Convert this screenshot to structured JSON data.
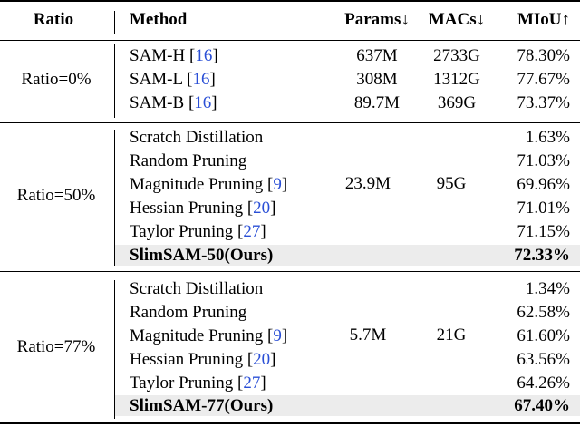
{
  "header": {
    "ratio": "Ratio",
    "method": "Method",
    "params": "Params↓",
    "macs": "MACs↓",
    "miou": "MIoU↑"
  },
  "groups": [
    {
      "ratio": "Ratio=0%",
      "rows": [
        {
          "method": "SAM-H",
          "ref": "16",
          "params": "637M",
          "macs": "2733G",
          "miou": "78.30%"
        },
        {
          "method": "SAM-L",
          "ref": "16",
          "params": "308M",
          "macs": "1312G",
          "miou": "77.67%"
        },
        {
          "method": "SAM-B",
          "ref": "16",
          "params": "89.7M",
          "macs": "369G",
          "miou": "73.37%"
        }
      ]
    },
    {
      "ratio": "Ratio=50%",
      "params": "23.9M",
      "macs": "95G",
      "rows": [
        {
          "method": "Scratch Distillation",
          "miou": "1.63%"
        },
        {
          "method": "Random Pruning",
          "miou": "71.03%"
        },
        {
          "method": "Magnitude Pruning",
          "ref": "9",
          "miou": "69.96%"
        },
        {
          "method": "Hessian Pruning",
          "ref": "20",
          "miou": "71.01%"
        },
        {
          "method": "Taylor Pruning",
          "ref": "27",
          "miou": "71.15%"
        },
        {
          "method": "SlimSAM-50(Ours)",
          "miou": "72.33%"
        }
      ]
    },
    {
      "ratio": "Ratio=77%",
      "params": "5.7M",
      "macs": "21G",
      "rows": [
        {
          "method": "Scratch Distillation",
          "miou": "1.34%"
        },
        {
          "method": "Random Pruning",
          "miou": "62.58%"
        },
        {
          "method": "Magnitude Pruning",
          "ref": "9",
          "miou": "61.60%"
        },
        {
          "method": "Hessian Pruning",
          "ref": "20",
          "miou": "63.56%"
        },
        {
          "method": "Taylor Pruning",
          "ref": "27",
          "miou": "64.26%"
        },
        {
          "method": "SlimSAM-77(Ours)",
          "miou": "67.40%"
        }
      ]
    }
  ]
}
